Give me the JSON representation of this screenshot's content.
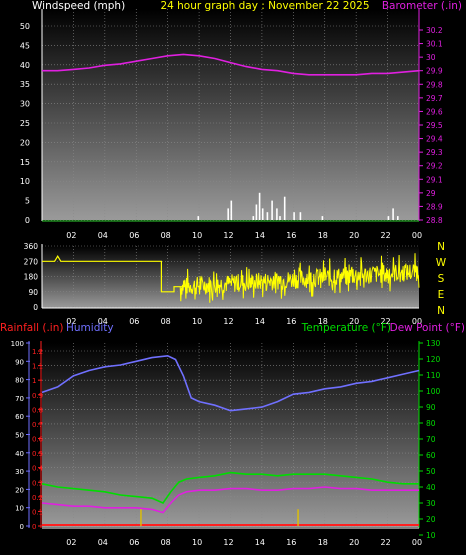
{
  "colors": {
    "background": "#000000",
    "axis_white": "#ffffff",
    "wind": "#ffffff",
    "barometer": "#e020e0",
    "wind_dir": "#ffff00",
    "direction_labels": "#ffff00",
    "rainfall": "#ff2020",
    "humidity": "#7070ff",
    "temperature": "#00dd00",
    "dewpoint": "#e020e0",
    "rain_ticks": "#ff2020",
    "humidity_ticks": "#7070ff",
    "temp_ticks": "#00dd00"
  },
  "chart_data": [
    {
      "type": "line",
      "name": "wind-barometer-panel",
      "title": "24 hour graph day : November 22 2025",
      "left_label": "Windspeed (mph)",
      "right_label": "Barometer (.in)",
      "x_ticks": [
        "02",
        "04",
        "06",
        "08",
        "10",
        "12",
        "14",
        "16",
        "18",
        "20",
        "22",
        "00"
      ],
      "x_range": [
        0,
        24
      ],
      "y_left_range": [
        0,
        50
      ],
      "y_left_ticks": [
        "0",
        "5",
        "10",
        "15",
        "20",
        "25",
        "30",
        "35",
        "40",
        "45",
        "50"
      ],
      "y_right_range": [
        28.8,
        30.3
      ],
      "y_right_ticks": [
        "28.8",
        "28.9",
        "29",
        "29.1",
        "29.2",
        "29.3",
        "29.4",
        "29.5",
        "29.6",
        "29.7",
        "29.8",
        "29.9",
        "30",
        "30.1",
        "30.2"
      ],
      "series": [
        {
          "name": "Barometer",
          "axis": "right",
          "x": [
            0,
            1,
            2,
            3,
            4,
            5,
            6,
            7,
            8,
            9,
            10,
            11,
            12,
            13,
            14,
            15,
            16,
            17,
            18,
            19,
            20,
            21,
            22,
            23,
            24
          ],
          "y": [
            29.9,
            29.9,
            29.91,
            29.92,
            29.94,
            29.95,
            29.97,
            29.99,
            30.01,
            30.02,
            30.01,
            29.99,
            29.96,
            29.93,
            29.91,
            29.9,
            29.88,
            29.87,
            29.87,
            29.87,
            29.87,
            29.88,
            29.88,
            29.89,
            29.9
          ]
        }
      ],
      "wind_bars": {
        "name": "Windspeed",
        "x": [
          9.9,
          11.8,
          12.0,
          13.4,
          13.6,
          13.8,
          14.0,
          14.3,
          14.6,
          14.9,
          15.1,
          15.4,
          16.0,
          16.4,
          17.8,
          22.0,
          22.3,
          22.6
        ],
        "y": [
          1,
          3,
          5,
          1,
          4,
          7,
          3,
          2,
          5,
          3,
          1,
          6,
          2,
          2,
          1,
          1,
          3,
          1
        ]
      }
    },
    {
      "type": "scatter",
      "name": "wind-direction-panel",
      "x_ticks": [
        "02",
        "04",
        "06",
        "08",
        "10",
        "12",
        "14",
        "16",
        "18",
        "20",
        "22",
        "00"
      ],
      "x_range": [
        0,
        24
      ],
      "y_range": [
        0,
        360
      ],
      "y_ticks": [
        "0",
        "90",
        "180",
        "270",
        "360"
      ],
      "direction_labels": [
        "N",
        "W",
        "S",
        "E",
        "N"
      ],
      "base": {
        "x": [
          0,
          0.8,
          1.0,
          1.2,
          7.6,
          7.6,
          8.4,
          8.4,
          9.2
        ],
        "y": [
          270,
          270,
          300,
          270,
          270,
          90,
          90,
          120,
          120
        ]
      },
      "noise": {
        "x_start": 8.8,
        "x_end": 24,
        "y_center_start": 120,
        "y_center_end": 210,
        "amplitude": 70
      }
    },
    {
      "type": "line",
      "name": "temp-humidity-panel",
      "left_label_rain": "Rainfall (.in)",
      "left_label_humidity": "Humidity",
      "right_label_temp": "Temperature (°F)",
      "right_label_dew": "Dew Point (°F)",
      "x_ticks": [
        "02",
        "04",
        "06",
        "08",
        "10",
        "12",
        "14",
        "16",
        "18",
        "20",
        "22",
        "00"
      ],
      "x_range": [
        0,
        24
      ],
      "rain_range": [
        0,
        1.2
      ],
      "rain_ticks": [
        "0",
        "0.1",
        "0.2",
        "0.3",
        "0.4",
        "0.5",
        "0.6",
        "0.7",
        "0.8",
        "0.9",
        "1",
        "1.1",
        "1.2"
      ],
      "humidity_range": [
        0,
        100
      ],
      "humidity_ticks": [
        "0",
        "10",
        "20",
        "30",
        "40",
        "50",
        "60",
        "70",
        "80",
        "90",
        "100"
      ],
      "temp_range": [
        10,
        125
      ],
      "temp_ticks": [
        "10",
        "20",
        "30",
        "40",
        "50",
        "60",
        "70",
        "80",
        "90",
        "100",
        "110",
        "120",
        "130"
      ],
      "series": [
        {
          "name": "Humidity",
          "axis": "humidity",
          "x": [
            0,
            1,
            2,
            3,
            4,
            5,
            6,
            7,
            8,
            8.5,
            9,
            9.5,
            10,
            11,
            12,
            13,
            14,
            15,
            16,
            17,
            18,
            19,
            20,
            21,
            22,
            23,
            24
          ],
          "y": [
            73,
            76,
            82,
            85,
            87,
            88,
            90,
            92,
            93,
            91,
            82,
            70,
            68,
            66,
            63,
            64,
            65,
            68,
            72,
            73,
            75,
            76,
            78,
            79,
            81,
            83,
            85
          ]
        },
        {
          "name": "Temperature",
          "axis": "temp",
          "x": [
            0,
            1,
            2,
            3,
            4,
            5,
            6,
            7,
            7.7,
            8.2,
            8.7,
            9.2,
            10,
            11,
            12,
            13,
            14,
            15,
            16,
            17,
            18,
            19,
            20,
            21,
            22,
            23,
            24
          ],
          "y": [
            42,
            40,
            39,
            38,
            37,
            35,
            34,
            33,
            30,
            37,
            43,
            45,
            46,
            47,
            49,
            48,
            48,
            47,
            48,
            48,
            48,
            47,
            46,
            45,
            43,
            42,
            42
          ]
        },
        {
          "name": "Dew Point",
          "axis": "temp",
          "x": [
            0,
            1,
            2,
            3,
            4,
            5,
            6,
            7,
            7.7,
            8.2,
            8.7,
            9.2,
            10,
            11,
            12,
            13,
            14,
            15,
            16,
            17,
            18,
            19,
            20,
            21,
            22,
            23,
            24
          ],
          "y": [
            30,
            29,
            28,
            28,
            27,
            27,
            27,
            26,
            24,
            30,
            35,
            37,
            38,
            38,
            39,
            39,
            38,
            38,
            39,
            39,
            40,
            39,
            39,
            38,
            38,
            38,
            38
          ]
        },
        {
          "name": "Rainfall",
          "axis": "rain",
          "x": [
            0,
            24
          ],
          "y": [
            0,
            0
          ]
        }
      ],
      "rain_markers": {
        "x": [
          6.3,
          16.3
        ],
        "y": [
          0.06,
          0.06
        ]
      }
    }
  ]
}
